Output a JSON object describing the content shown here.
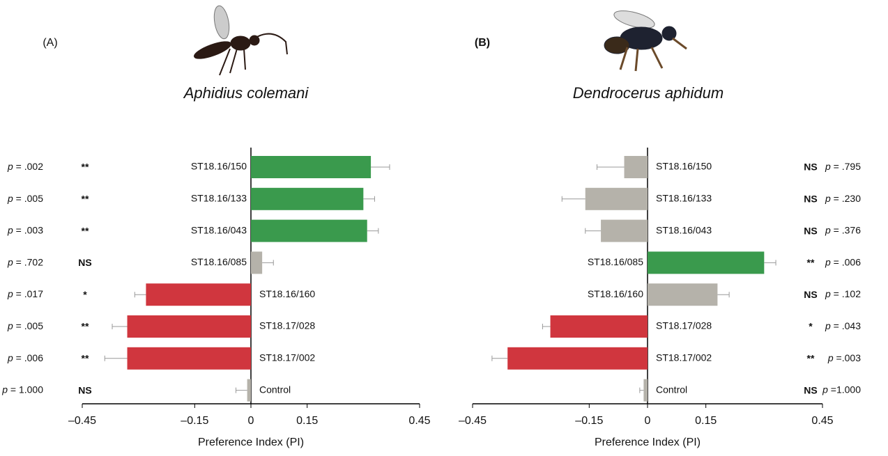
{
  "chart_data": [
    {
      "type": "bar",
      "orientation": "horizontal",
      "panel_label": "(A)",
      "title": "Aphidius colemani",
      "xlabel": "Preference Index (PI)",
      "categories": [
        "ST18.16/150",
        "ST18.16/133",
        "ST18.16/043",
        "ST18.16/085",
        "ST18.16/160",
        "ST18.17/028",
        "ST18.17/002",
        "Control"
      ],
      "values": [
        0.32,
        0.3,
        0.31,
        0.03,
        -0.28,
        -0.33,
        -0.33,
        -0.01
      ],
      "errors": [
        0.05,
        0.03,
        0.03,
        0.03,
        0.03,
        0.04,
        0.06,
        0.03
      ],
      "colors": [
        "#3a9a4d",
        "#3a9a4d",
        "#3a9a4d",
        "#b5b2aa",
        "#d0363e",
        "#d0363e",
        "#d0363e",
        "#b5b2aa"
      ],
      "significance": [
        "**",
        "**",
        "**",
        "NS",
        "*",
        "**",
        "**",
        "NS"
      ],
      "p_labels": [
        "p = .002",
        "p = .005",
        "p = .003",
        "p = .702",
        "p = .017",
        "p = .005",
        "p = .006",
        "p = 1.000"
      ],
      "xlim": [
        -0.45,
        0.45
      ],
      "xticks": [
        {
          "value": -0.45,
          "label": "–0.45"
        },
        {
          "value": -0.15,
          "label": "–0.15"
        },
        0,
        0.15,
        0.45
      ]
    },
    {
      "type": "bar",
      "orientation": "horizontal",
      "panel_label": "(B)",
      "title": "Dendrocerus aphidum",
      "xlabel": "Preference Index (PI)",
      "categories": [
        "ST18.16/150",
        "ST18.16/133",
        "ST18.16/043",
        "ST18.16/085",
        "ST18.16/160",
        "ST18.17/028",
        "ST18.17/002",
        "Control"
      ],
      "values": [
        -0.06,
        -0.16,
        -0.12,
        0.3,
        0.18,
        -0.25,
        -0.36,
        -0.01
      ],
      "errors": [
        0.07,
        0.06,
        0.04,
        0.03,
        0.03,
        0.02,
        0.04,
        0.01
      ],
      "colors": [
        "#b5b2aa",
        "#b5b2aa",
        "#b5b2aa",
        "#3a9a4d",
        "#b5b2aa",
        "#d0363e",
        "#d0363e",
        "#b5b2aa"
      ],
      "significance": [
        "NS",
        "NS",
        "NS",
        "**",
        "NS",
        "*",
        "**",
        "NS"
      ],
      "p_labels": [
        "p = .795",
        "p = .230",
        "p = .376",
        "p = .006",
        "p = .102",
        "p = .043",
        "p =.003",
        "p =1.000"
      ],
      "xlim": [
        -0.45,
        0.45
      ],
      "xticks": [
        {
          "value": -0.45,
          "label": "–0.45"
        },
        {
          "value": -0.15,
          "label": "–0.15"
        },
        0,
        0.15,
        0.45
      ]
    }
  ]
}
